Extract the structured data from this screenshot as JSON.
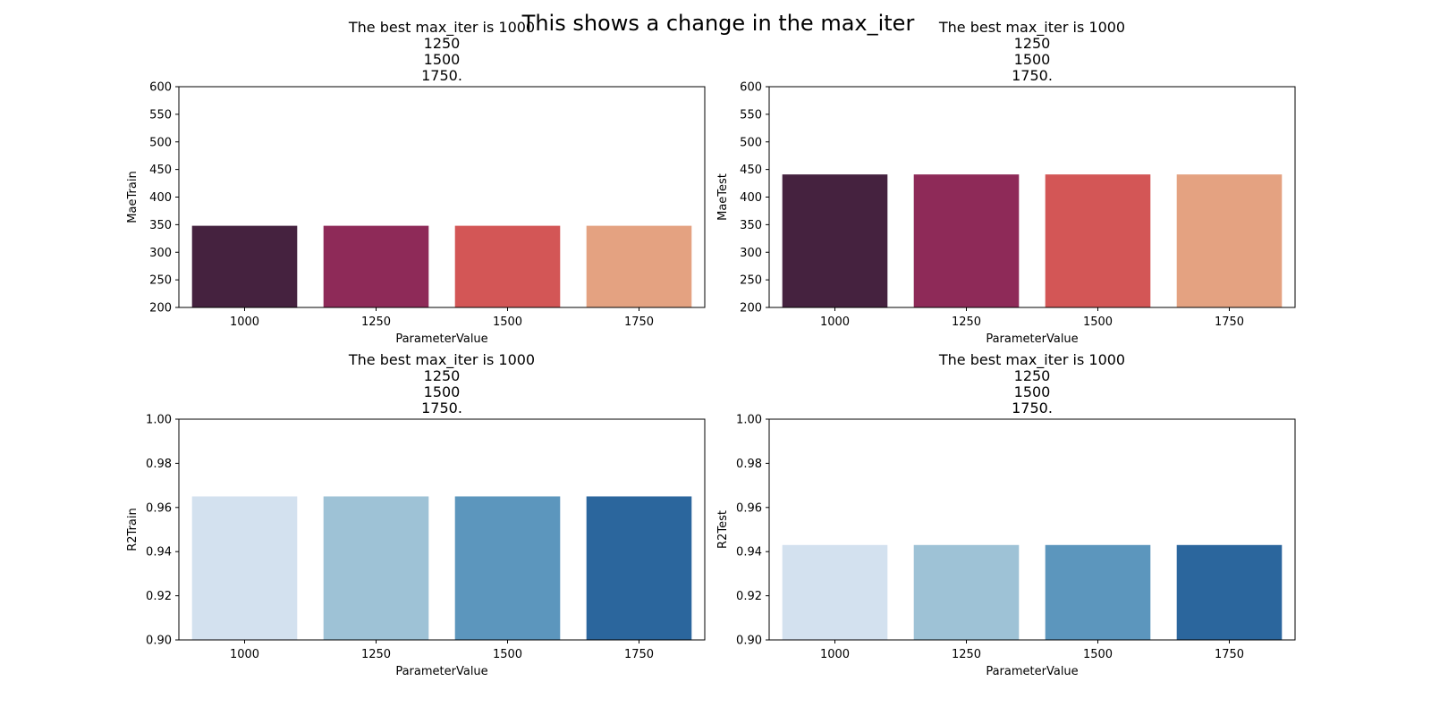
{
  "figure": {
    "suptitle": "This shows a change in the max_iter"
  },
  "chart_data": [
    {
      "type": "bar",
      "title_lines": [
        "The best max_iter is 1000",
        "1250",
        "1500",
        "1750."
      ],
      "xlabel": "ParameterValue",
      "ylabel": "MaeTrain",
      "categories": [
        "1000",
        "1250",
        "1500",
        "1750"
      ],
      "values": [
        348,
        348,
        348,
        348
      ],
      "ylim": [
        200,
        600
      ],
      "yticks": [
        200,
        250,
        300,
        350,
        400,
        450,
        500,
        550,
        600
      ],
      "ytick_labels": [
        "200",
        "250",
        "300",
        "350",
        "400",
        "450",
        "500",
        "550",
        "600"
      ],
      "colors": [
        "#45223f",
        "#8e2a58",
        "#d35656",
        "#e4a281"
      ],
      "grid": false,
      "legend": "none"
    },
    {
      "type": "bar",
      "title_lines": [
        "The best max_iter is 1000",
        "1250",
        "1500",
        "1750."
      ],
      "xlabel": "ParameterValue",
      "ylabel": "MaeTest",
      "categories": [
        "1000",
        "1250",
        "1500",
        "1750"
      ],
      "values": [
        441,
        441,
        441,
        441
      ],
      "ylim": [
        200,
        600
      ],
      "yticks": [
        200,
        250,
        300,
        350,
        400,
        450,
        500,
        550,
        600
      ],
      "ytick_labels": [
        "200",
        "250",
        "300",
        "350",
        "400",
        "450",
        "500",
        "550",
        "600"
      ],
      "colors": [
        "#45223f",
        "#8e2a58",
        "#d35656",
        "#e4a281"
      ],
      "grid": false,
      "legend": "none"
    },
    {
      "type": "bar",
      "title_lines": [
        "The best max_iter is 1000",
        "1250",
        "1500",
        "1750."
      ],
      "xlabel": "ParameterValue",
      "ylabel": "R2Train",
      "categories": [
        "1000",
        "1250",
        "1500",
        "1750"
      ],
      "values": [
        0.965,
        0.965,
        0.965,
        0.965
      ],
      "ylim": [
        0.9,
        1.0
      ],
      "yticks": [
        0.9,
        0.92,
        0.94,
        0.96,
        0.98,
        1.0
      ],
      "ytick_labels": [
        "0.90",
        "0.92",
        "0.94",
        "0.96",
        "0.98",
        "1.00"
      ],
      "colors": [
        "#d3e1ef",
        "#9ec2d6",
        "#5c96bd",
        "#2b669d"
      ],
      "grid": false,
      "legend": "none"
    },
    {
      "type": "bar",
      "title_lines": [
        "The best max_iter is 1000",
        "1250",
        "1500",
        "1750."
      ],
      "xlabel": "ParameterValue",
      "ylabel": "R2Test",
      "categories": [
        "1000",
        "1250",
        "1500",
        "1750"
      ],
      "values": [
        0.943,
        0.943,
        0.943,
        0.943
      ],
      "ylim": [
        0.9,
        1.0
      ],
      "yticks": [
        0.9,
        0.92,
        0.94,
        0.96,
        0.98,
        1.0
      ],
      "ytick_labels": [
        "0.90",
        "0.92",
        "0.94",
        "0.96",
        "0.98",
        "1.00"
      ],
      "colors": [
        "#d3e1ef",
        "#9ec2d6",
        "#5c96bd",
        "#2b669d"
      ],
      "grid": false,
      "legend": "none"
    }
  ]
}
